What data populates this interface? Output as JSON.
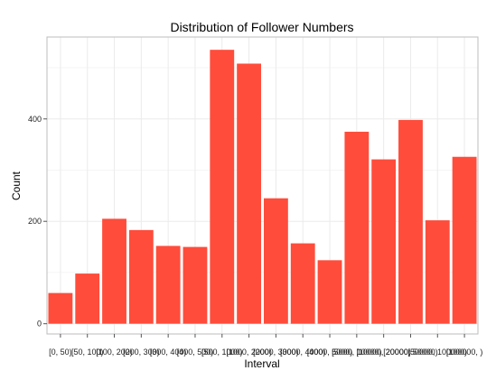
{
  "chart_data": {
    "type": "bar",
    "title": "Distribution of Follower Numbers",
    "xlabel": "Interval",
    "ylabel": "Count",
    "categories": [
      "[0, 50)",
      "[50, 100)",
      "[100, 200)",
      "[200, 300)",
      "[300, 400)",
      "[400, 500)",
      "[500, 1000)",
      "[1000, 2000)",
      "[2000, 3000)",
      "[3000, 4000)",
      "[4000, 5000)",
      "[5000, 10000)",
      "[10000, 20000)",
      "[20000, 50000)",
      "[50000, 100000)",
      "[100000, )"
    ],
    "values": [
      60,
      98,
      205,
      183,
      152,
      150,
      535,
      508,
      245,
      157,
      124,
      375,
      321,
      398,
      202,
      326
    ],
    "yticks": [
      0,
      200,
      400
    ],
    "ylim": [
      -20,
      560
    ],
    "grid": true,
    "bar_color": "#FF4C3B",
    "grid_color": "#EBEBEB",
    "panel_border_color": "#BDBDBD"
  }
}
